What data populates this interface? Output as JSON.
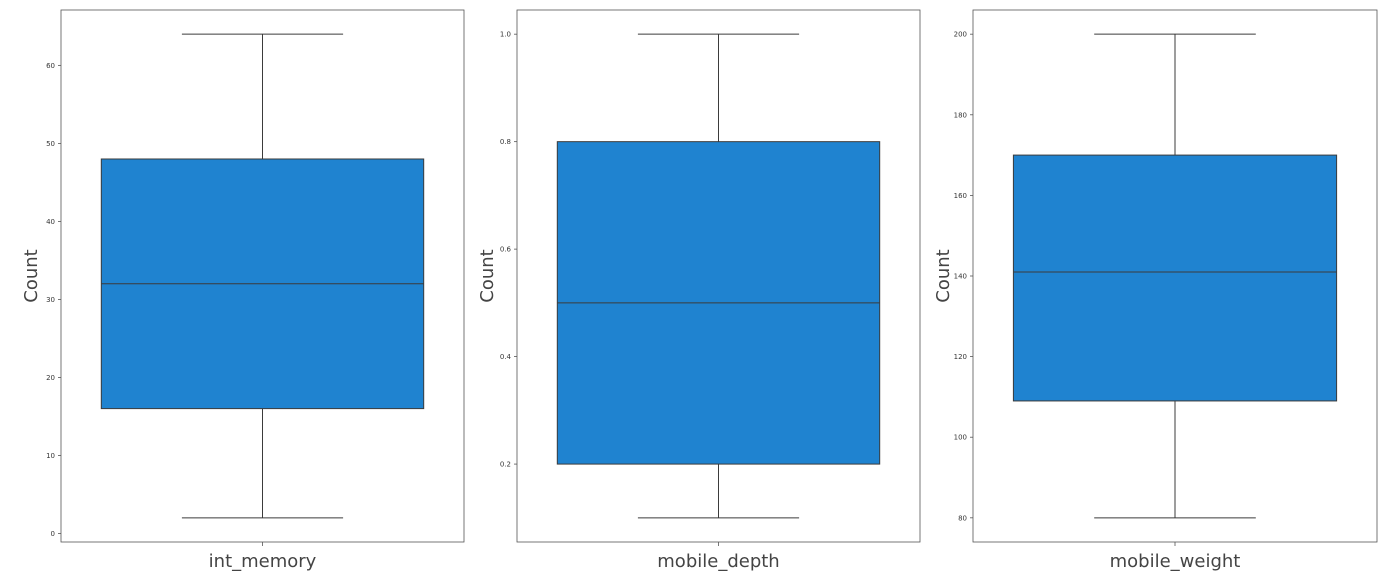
{
  "chart_data": [
    {
      "type": "box",
      "xlabel": "int_memory",
      "ylabel": "Count",
      "ylim": [
        -1.1,
        67.1
      ],
      "yticks": [
        "0",
        "10",
        "20",
        "30",
        "40",
        "50",
        "60"
      ],
      "box": {
        "whisker_low": 2,
        "q1": 16,
        "median": 32,
        "q3": 48,
        "whisker_high": 64
      },
      "grid": false
    },
    {
      "type": "box",
      "xlabel": "mobile_depth",
      "ylabel": "Count",
      "ylim": [
        0.055,
        1.045
      ],
      "yticks": [
        "0.2",
        "0.4",
        "0.6",
        "0.8",
        "1.0"
      ],
      "box": {
        "whisker_low": 0.1,
        "q1": 0.2,
        "median": 0.5,
        "q3": 0.8,
        "whisker_high": 1.0
      },
      "grid": false
    },
    {
      "type": "box",
      "xlabel": "mobile_weight",
      "ylabel": "Count",
      "ylim": [
        74,
        206
      ],
      "yticks": [
        "80",
        "100",
        "120",
        "140",
        "160",
        "180",
        "200"
      ],
      "box": {
        "whisker_low": 80,
        "q1": 109,
        "median": 141,
        "q3": 170,
        "whisker_high": 200
      },
      "grid": false
    }
  ],
  "colors": {
    "box_fill": "#1f83d0",
    "line": "#3b3b3b",
    "frame": "#555555"
  }
}
